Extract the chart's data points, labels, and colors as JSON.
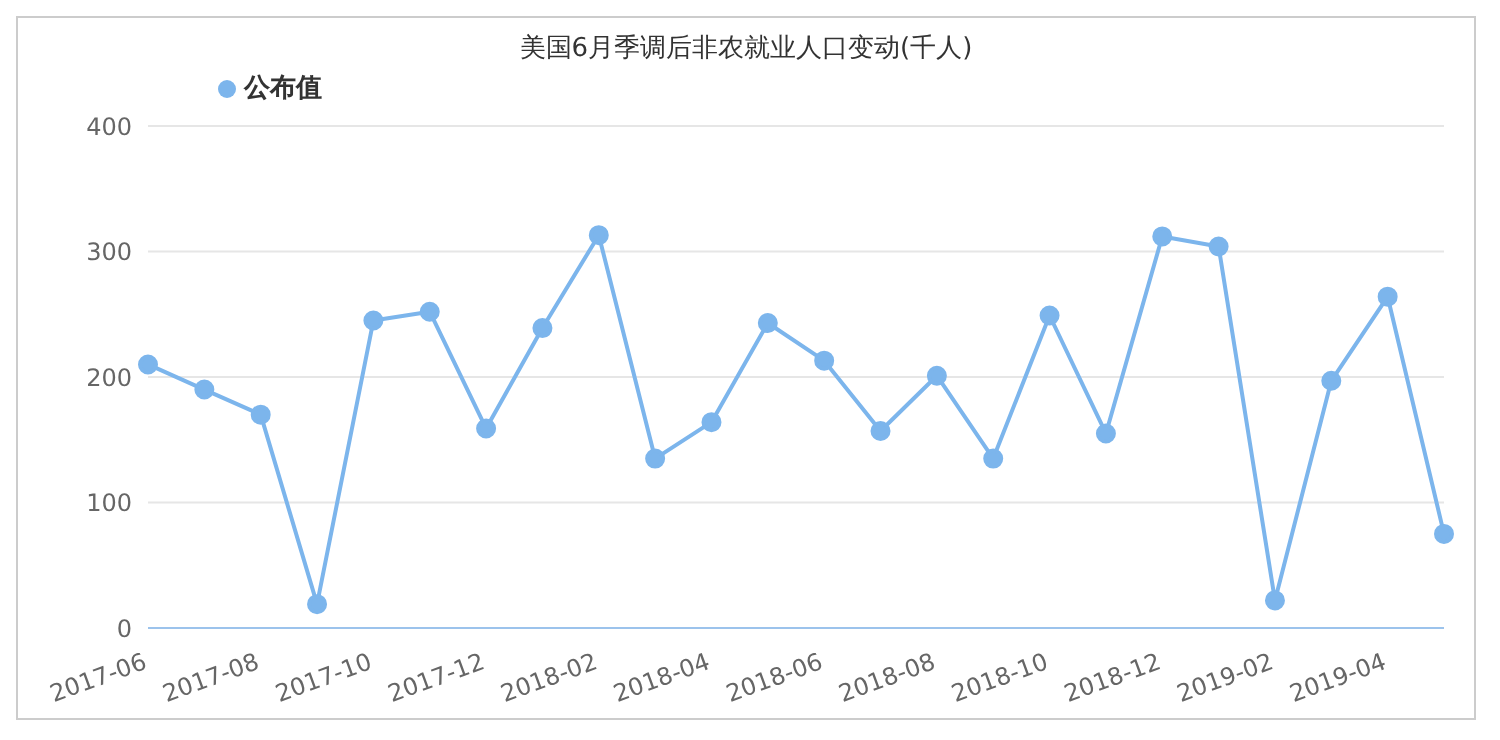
{
  "chart_data": {
    "type": "line",
    "title": "美国6月季调后非农就业人口变动(千人)",
    "categories": [
      "2017-06",
      null,
      "2017-08",
      null,
      "2017-10",
      null,
      "2017-12",
      null,
      "2018-02",
      null,
      "2018-04",
      null,
      "2018-06",
      null,
      "2018-08",
      null,
      "2018-10",
      null,
      "2018-12",
      null,
      "2019-02",
      null,
      "2019-04",
      null
    ],
    "series": [
      {
        "name": "公布值",
        "color": "#7cb5ec",
        "values": [
          210,
          190,
          170,
          19,
          245,
          252,
          159,
          239,
          313,
          135,
          164,
          243,
          213,
          157,
          201,
          135,
          249,
          155,
          312,
          304,
          22,
          197,
          264,
          75
        ]
      }
    ],
    "ylim": [
      0,
      400
    ],
    "yticks": [
      0,
      100,
      200,
      300,
      400
    ],
    "grid": "y",
    "legend": "top left",
    "marker": "circle",
    "line_style": "solid"
  }
}
